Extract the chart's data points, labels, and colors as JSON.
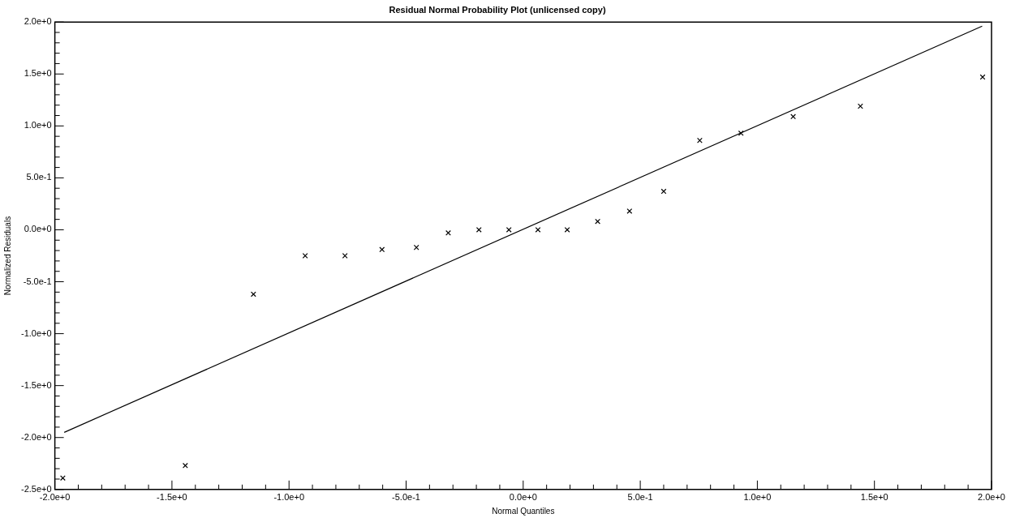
{
  "chart_data": {
    "type": "scatter",
    "title": "Residual Normal Probability Plot (unlicensed copy)",
    "xlabel": "Normal Quantiles",
    "ylabel": "Normalized Residuals",
    "xlim": [
      -2,
      2
    ],
    "ylim": [
      -2.5,
      2
    ],
    "xticks": [
      {
        "value": -2,
        "label": "-2.0e+0"
      },
      {
        "value": -1.9,
        "label": null
      },
      {
        "value": -1.8,
        "label": null
      },
      {
        "value": -1.7,
        "label": null
      },
      {
        "value": -1.6,
        "label": null
      },
      {
        "value": -1.5,
        "label": "-1.5e+0"
      },
      {
        "value": -1.4,
        "label": null
      },
      {
        "value": -1.3,
        "label": null
      },
      {
        "value": -1.2,
        "label": null
      },
      {
        "value": -1.1,
        "label": null
      },
      {
        "value": -1,
        "label": "-1.0e+0"
      },
      {
        "value": -0.9,
        "label": null
      },
      {
        "value": -0.8,
        "label": null
      },
      {
        "value": -0.7,
        "label": null
      },
      {
        "value": -0.6,
        "label": null
      },
      {
        "value": -0.5,
        "label": "-5.0e-1"
      },
      {
        "value": -0.4,
        "label": null
      },
      {
        "value": -0.3,
        "label": null
      },
      {
        "value": -0.2,
        "label": null
      },
      {
        "value": -0.1,
        "label": null
      },
      {
        "value": 0,
        "label": "0.0e+0"
      },
      {
        "value": 0.1,
        "label": null
      },
      {
        "value": 0.2,
        "label": null
      },
      {
        "value": 0.3,
        "label": null
      },
      {
        "value": 0.4,
        "label": null
      },
      {
        "value": 0.5,
        "label": "5.0e-1"
      },
      {
        "value": 0.6,
        "label": null
      },
      {
        "value": 0.7,
        "label": null
      },
      {
        "value": 0.8,
        "label": null
      },
      {
        "value": 0.9,
        "label": null
      },
      {
        "value": 1,
        "label": "1.0e+0"
      },
      {
        "value": 1.1,
        "label": null
      },
      {
        "value": 1.2,
        "label": null
      },
      {
        "value": 1.3,
        "label": null
      },
      {
        "value": 1.4,
        "label": null
      },
      {
        "value": 1.5,
        "label": "1.5e+0"
      },
      {
        "value": 1.6,
        "label": null
      },
      {
        "value": 1.7,
        "label": null
      },
      {
        "value": 1.8,
        "label": null
      },
      {
        "value": 1.9,
        "label": null
      },
      {
        "value": 2,
        "label": "2.0e+0"
      }
    ],
    "yticks": [
      {
        "value": -2.5,
        "label": "-2.5e+0"
      },
      {
        "value": -2.4,
        "label": null
      },
      {
        "value": -2.3,
        "label": null
      },
      {
        "value": -2.2,
        "label": null
      },
      {
        "value": -2.1,
        "label": null
      },
      {
        "value": -2,
        "label": "-2.0e+0"
      },
      {
        "value": -1.9,
        "label": null
      },
      {
        "value": -1.8,
        "label": null
      },
      {
        "value": -1.7,
        "label": null
      },
      {
        "value": -1.6,
        "label": null
      },
      {
        "value": -1.5,
        "label": "-1.5e+0"
      },
      {
        "value": -1.4,
        "label": null
      },
      {
        "value": -1.3,
        "label": null
      },
      {
        "value": -1.2,
        "label": null
      },
      {
        "value": -1.1,
        "label": null
      },
      {
        "value": -1,
        "label": "-1.0e+0"
      },
      {
        "value": -0.9,
        "label": null
      },
      {
        "value": -0.8,
        "label": null
      },
      {
        "value": -0.7,
        "label": null
      },
      {
        "value": -0.6,
        "label": null
      },
      {
        "value": -0.5,
        "label": "-5.0e-1"
      },
      {
        "value": -0.4,
        "label": null
      },
      {
        "value": -0.3,
        "label": null
      },
      {
        "value": -0.2,
        "label": null
      },
      {
        "value": -0.1,
        "label": null
      },
      {
        "value": 0,
        "label": "0.0e+0"
      },
      {
        "value": 0.1,
        "label": null
      },
      {
        "value": 0.2,
        "label": null
      },
      {
        "value": 0.3,
        "label": null
      },
      {
        "value": 0.4,
        "label": null
      },
      {
        "value": 0.5,
        "label": "5.0e-1"
      },
      {
        "value": 0.6,
        "label": null
      },
      {
        "value": 0.7,
        "label": null
      },
      {
        "value": 0.8,
        "label": null
      },
      {
        "value": 0.9,
        "label": null
      },
      {
        "value": 1,
        "label": "1.0e+0"
      },
      {
        "value": 1.1,
        "label": null
      },
      {
        "value": 1.2,
        "label": null
      },
      {
        "value": 1.3,
        "label": null
      },
      {
        "value": 1.4,
        "label": null
      },
      {
        "value": 1.5,
        "label": "1.5e+0"
      },
      {
        "value": 1.6,
        "label": null
      },
      {
        "value": 1.7,
        "label": null
      },
      {
        "value": 1.8,
        "label": null
      },
      {
        "value": 1.9,
        "label": null
      },
      {
        "value": 2,
        "label": "2.0e+0"
      }
    ],
    "series": [
      {
        "color": "#000000",
        "marker": "cross",
        "x": [
          -1.966,
          -1.443,
          -1.152,
          -0.931,
          -0.761,
          -0.603,
          -0.456,
          -0.32,
          -0.189,
          -0.061,
          0.063,
          0.188,
          0.318,
          0.454,
          0.6,
          0.754,
          0.93,
          1.153,
          1.44,
          1.962
        ],
        "values": [
          -2.39,
          -2.27,
          -0.62,
          -0.25,
          -0.25,
          -0.19,
          -0.17,
          -0.03,
          0,
          0,
          0,
          0,
          0.08,
          0.18,
          0.37,
          0.86,
          0.93,
          1.09,
          1.19,
          1.47
        ]
      },
      {
        "type": "line",
        "color": "#000000",
        "marker": "none",
        "x": [
          -1.96,
          1.96
        ],
        "values": [
          -1.95,
          1.96
        ]
      }
    ]
  }
}
